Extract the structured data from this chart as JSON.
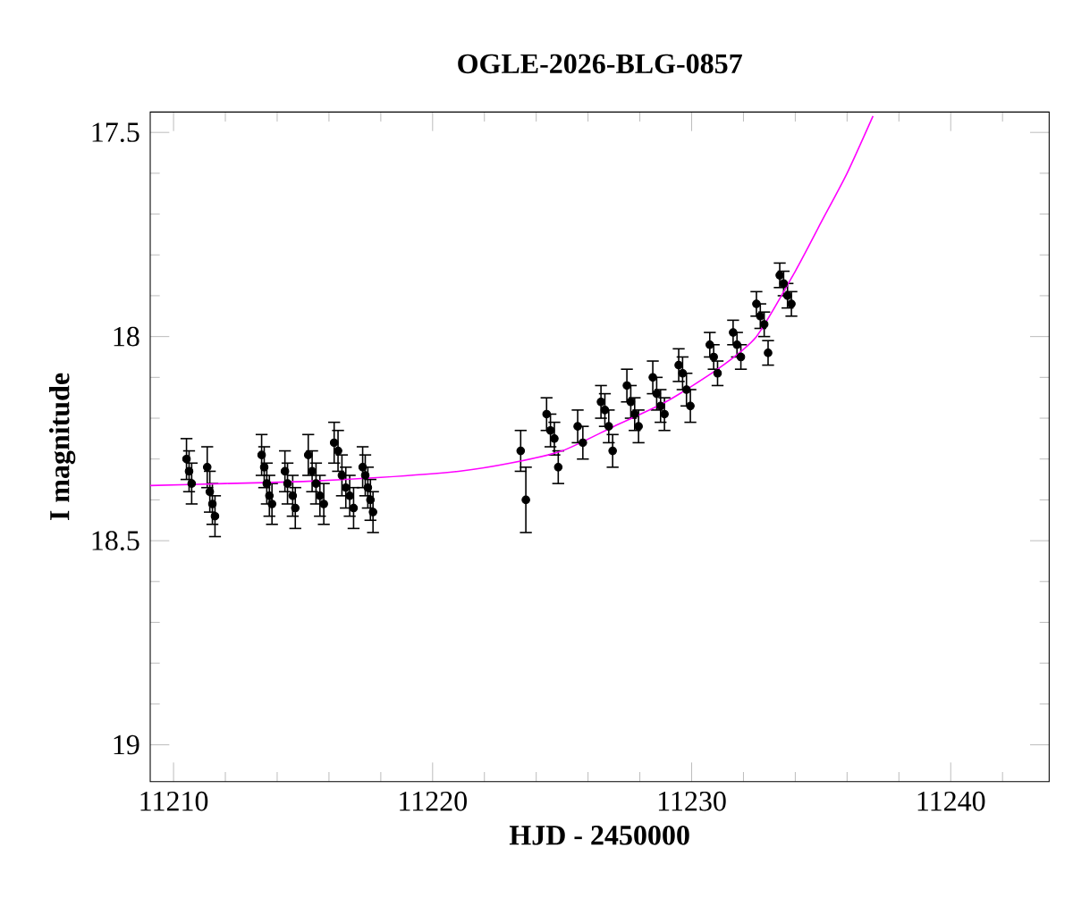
{
  "chart_data": {
    "type": "scatter",
    "title": "OGLE-2026-BLG-0857",
    "xlabel": "HJD - 2450000",
    "ylabel": "I magnitude",
    "xlim": [
      11209.1,
      11243.8
    ],
    "ylim": [
      19.09,
      17.45
    ],
    "xticks": [
      11210,
      {
        "value": 11212,
        "label": null
      },
      {
        "value": 11214,
        "label": null
      },
      {
        "value": 11216,
        "label": null
      },
      {
        "value": 11218,
        "label": null
      },
      11220,
      {
        "value": 11222,
        "label": null
      },
      {
        "value": 11224,
        "label": null
      },
      {
        "value": 11226,
        "label": null
      },
      {
        "value": 11228,
        "label": null
      },
      11230,
      {
        "value": 11232,
        "label": null
      },
      {
        "value": 11234,
        "label": null
      },
      {
        "value": 11236,
        "label": null
      },
      {
        "value": 11238,
        "label": null
      },
      11240,
      {
        "value": 11242,
        "label": null
      }
    ],
    "yticks": [
      17.5,
      {
        "value": 17.6,
        "label": null
      },
      {
        "value": 17.7,
        "label": null
      },
      {
        "value": 17.8,
        "label": null
      },
      {
        "value": 17.9,
        "label": null
      },
      18,
      {
        "value": 18.1,
        "label": null
      },
      {
        "value": 18.2,
        "label": null
      },
      {
        "value": 18.3,
        "label": null
      },
      {
        "value": 18.4,
        "label": null
      },
      18.5,
      {
        "value": 18.6,
        "label": null
      },
      {
        "value": 18.7,
        "label": null
      },
      {
        "value": 18.8,
        "label": null
      },
      {
        "value": 18.9,
        "label": null
      },
      19
    ],
    "grid": false,
    "series": [
      {
        "color": "#000000",
        "marker": "circle",
        "x": [
          11210.5,
          11210.6,
          11210.7,
          11211.3,
          11211.4,
          11211.5,
          11211.6,
          11213.4,
          11213.5,
          11213.6,
          11213.7,
          11213.8,
          11214.3,
          11214.4,
          11214.6,
          11214.7,
          11215.2,
          11215.35,
          11215.5,
          11215.65,
          11215.8,
          11216.2,
          11216.35,
          11216.5,
          11216.65,
          11216.8,
          11216.95,
          11217.3,
          11217.4,
          11217.5,
          11217.6,
          11217.7,
          11223.4,
          11223.6,
          11224.4,
          11224.55,
          11224.7,
          11224.85,
          11225.6,
          11225.8,
          11226.5,
          11226.65,
          11226.8,
          11226.95,
          11227.5,
          11227.65,
          11227.8,
          11227.95,
          11228.5,
          11228.65,
          11228.8,
          11228.95,
          11229.5,
          11229.65,
          11229.8,
          11229.95,
          11230.7,
          11230.85,
          11231.0,
          11231.6,
          11231.75,
          11231.9,
          11232.5,
          11232.65,
          11232.8,
          11232.95,
          11233.4,
          11233.55,
          11233.7,
          11233.85
        ],
        "values": [
          18.3,
          18.33,
          18.36,
          18.32,
          18.38,
          18.41,
          18.44,
          18.29,
          18.32,
          18.36,
          18.39,
          18.41,
          18.33,
          18.36,
          18.39,
          18.42,
          18.29,
          18.33,
          18.36,
          18.39,
          18.41,
          18.26,
          18.28,
          18.34,
          18.37,
          18.39,
          18.42,
          18.32,
          18.34,
          18.37,
          18.4,
          18.43,
          18.28,
          18.4,
          18.19,
          18.23,
          18.25,
          18.32,
          18.22,
          18.26,
          18.16,
          18.18,
          18.22,
          18.28,
          18.12,
          18.16,
          18.19,
          18.22,
          18.1,
          18.14,
          18.17,
          18.19,
          18.07,
          18.09,
          18.13,
          18.17,
          18.02,
          18.05,
          18.09,
          17.99,
          18.02,
          18.05,
          17.92,
          17.95,
          17.97,
          18.04,
          17.85,
          17.87,
          17.9,
          17.92
        ],
        "errors": [
          0.05,
          0.05,
          0.05,
          0.05,
          0.05,
          0.05,
          0.05,
          0.05,
          0.05,
          0.05,
          0.05,
          0.05,
          0.05,
          0.05,
          0.05,
          0.05,
          0.05,
          0.05,
          0.05,
          0.05,
          0.05,
          0.05,
          0.05,
          0.05,
          0.05,
          0.05,
          0.05,
          0.05,
          0.05,
          0.05,
          0.05,
          0.05,
          0.05,
          0.08,
          0.04,
          0.04,
          0.04,
          0.04,
          0.04,
          0.04,
          0.04,
          0.04,
          0.04,
          0.04,
          0.04,
          0.04,
          0.04,
          0.04,
          0.04,
          0.04,
          0.04,
          0.04,
          0.04,
          0.04,
          0.04,
          0.04,
          0.03,
          0.03,
          0.03,
          0.03,
          0.03,
          0.03,
          0.03,
          0.03,
          0.03,
          0.03,
          0.03,
          0.03,
          0.03,
          0.03
        ]
      },
      {
        "type": "line",
        "marker": "none",
        "color": "#ff00ff",
        "x": [
          11209.1,
          11212,
          11215,
          11218,
          11221,
          11223,
          11225,
          11227,
          11229,
          11231,
          11232.5,
          11234,
          11235,
          11236,
          11237
        ],
        "values": [
          18.365,
          18.36,
          18.355,
          18.345,
          18.33,
          18.31,
          18.28,
          18.22,
          18.16,
          18.08,
          18.0,
          17.84,
          17.72,
          17.6,
          17.46
        ]
      }
    ]
  }
}
